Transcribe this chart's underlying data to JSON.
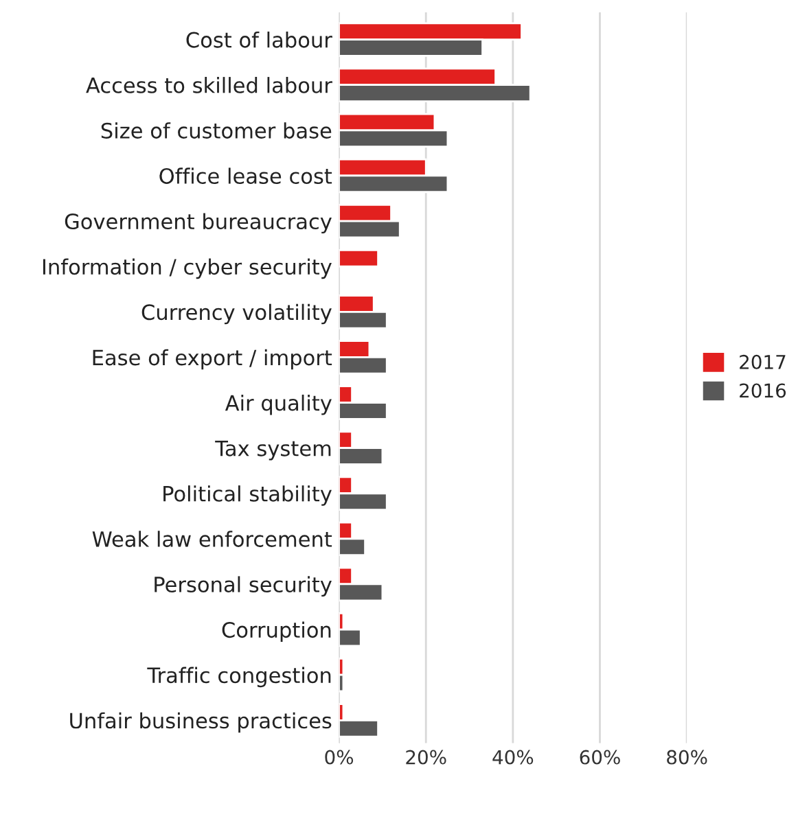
{
  "chart_data": {
    "type": "bar",
    "orientation": "horizontal",
    "categories": [
      "Cost of labour",
      "Access to skilled labour",
      "Size of customer base",
      "Office lease cost",
      "Government bureaucracy",
      "Information / cyber security",
      "Currency volatility",
      "Ease of export / import",
      "Air quality",
      "Tax system",
      "Political stability",
      "Weak law enforcement",
      "Personal security",
      "Corruption",
      "Traffic congestion",
      "Unfair business practices"
    ],
    "series": [
      {
        "name": "2017",
        "color": "#e2201f",
        "values": [
          42,
          36,
          22,
          20,
          12,
          9,
          8,
          7,
          3,
          3,
          3,
          3,
          3,
          1,
          1,
          1
        ]
      },
      {
        "name": "2016",
        "color": "#585858",
        "values": [
          33,
          44,
          25,
          25,
          14,
          null,
          11,
          11,
          11,
          10,
          11,
          6,
          10,
          5,
          1,
          9
        ]
      }
    ],
    "xlim": [
      0,
      80
    ],
    "xticks": [
      {
        "value": 0,
        "label": "0%"
      },
      {
        "value": 20,
        "label": "20%"
      },
      {
        "value": 40,
        "label": "40%"
      },
      {
        "value": 60,
        "label": "60%"
      },
      {
        "value": 80,
        "label": "80%"
      }
    ],
    "grid": "x",
    "legend": "right"
  }
}
